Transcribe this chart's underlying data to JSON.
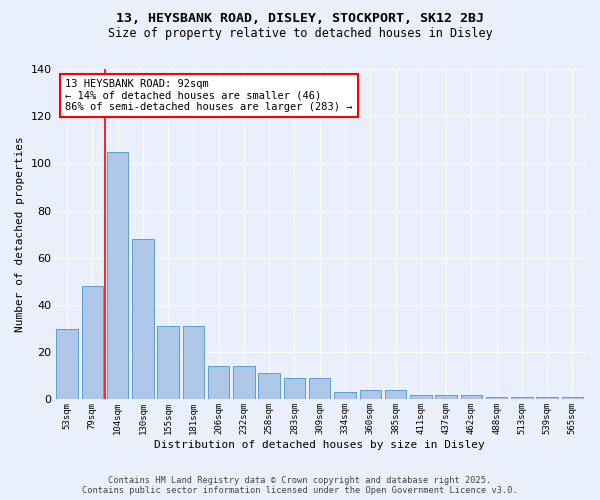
{
  "title1": "13, HEYSBANK ROAD, DISLEY, STOCKPORT, SK12 2BJ",
  "title2": "Size of property relative to detached houses in Disley",
  "xlabel": "Distribution of detached houses by size in Disley",
  "ylabel": "Number of detached properties",
  "categories": [
    "53sqm",
    "79sqm",
    "104sqm",
    "130sqm",
    "155sqm",
    "181sqm",
    "206sqm",
    "232sqm",
    "258sqm",
    "283sqm",
    "309sqm",
    "334sqm",
    "360sqm",
    "385sqm",
    "411sqm",
    "437sqm",
    "462sqm",
    "488sqm",
    "513sqm",
    "539sqm",
    "565sqm"
  ],
  "values": [
    30,
    48,
    105,
    68,
    31,
    31,
    14,
    14,
    11,
    9,
    9,
    3,
    4,
    4,
    2,
    2,
    2,
    1,
    1,
    1,
    1
  ],
  "bar_color": "#aec6e8",
  "bar_edge_color": "#5a9fd4",
  "redline_x": 1.5,
  "annotation_text": "13 HEYSBANK ROAD: 92sqm\n← 14% of detached houses are smaller (46)\n86% of semi-detached houses are larger (283) →",
  "annotation_box_color": "white",
  "annotation_box_edge": "red",
  "ylim": [
    0,
    140
  ],
  "yticks": [
    0,
    20,
    40,
    60,
    80,
    100,
    120,
    140
  ],
  "background_color": "#eaf0fb",
  "grid_color": "white",
  "footer1": "Contains HM Land Registry data © Crown copyright and database right 2025.",
  "footer2": "Contains public sector information licensed under the Open Government Licence v3.0."
}
